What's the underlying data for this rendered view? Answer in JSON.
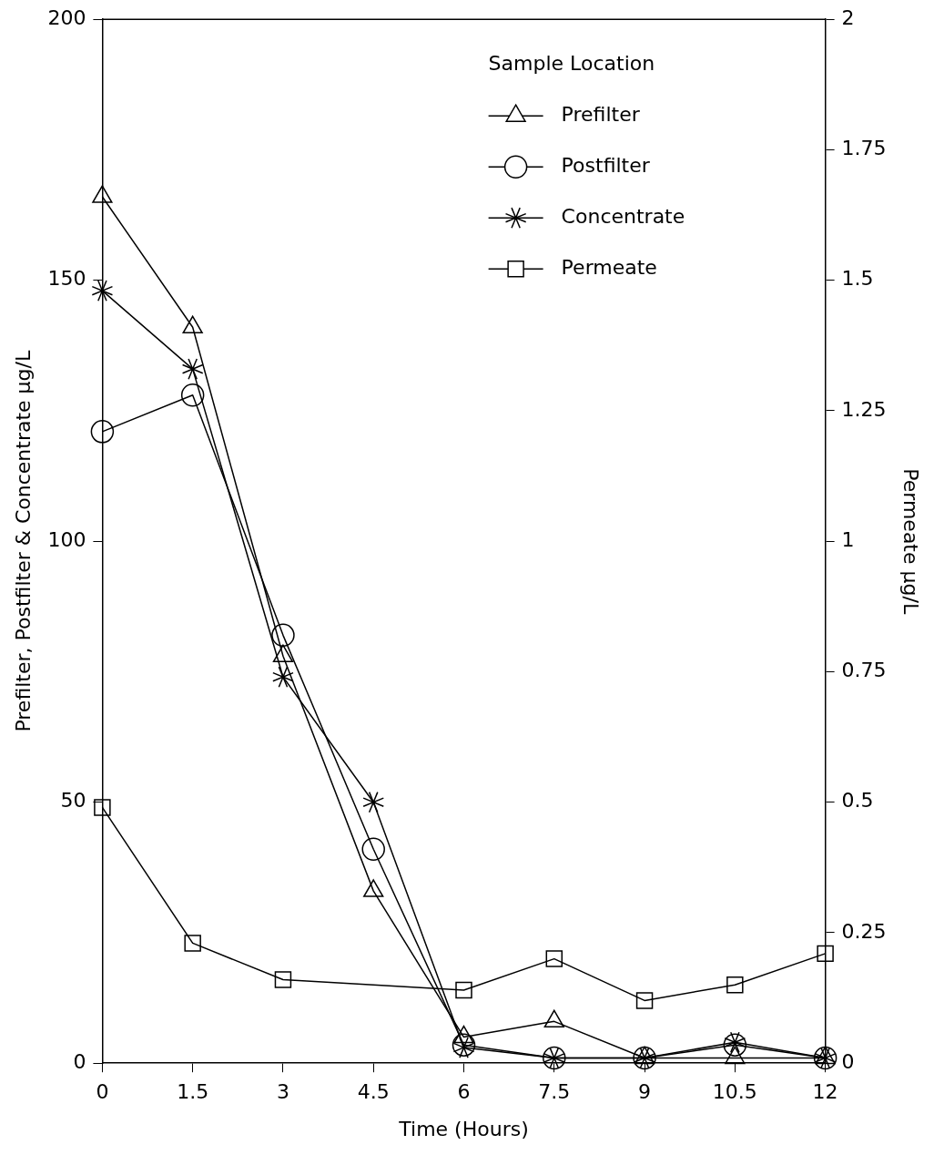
{
  "chart_data": {
    "type": "line",
    "xlabel": "Time (Hours)",
    "ylabel": "Prefilter, Postfilter & Concentrate µg/L",
    "y2label": "Permeate µg/L",
    "legend_title": "Sample Location",
    "legend": "top right",
    "grid": false,
    "line_style": "solid",
    "x": [
      0,
      1.5,
      3,
      4.5,
      6,
      7.5,
      9,
      10.5,
      12
    ],
    "xlim": [
      0,
      12
    ],
    "xticks": [
      0,
      1.5,
      3,
      4.5,
      6,
      7.5,
      9,
      10.5,
      12
    ],
    "ylim": [
      0,
      200
    ],
    "yticks": [
      0,
      50,
      100,
      150,
      200
    ],
    "y2lim": [
      0,
      2
    ],
    "y2ticks": [
      0,
      0.25,
      0.5,
      0.75,
      1,
      1.25,
      1.5,
      1.75,
      2
    ],
    "series": [
      {
        "name": "Prefilter",
        "color": "#000000",
        "marker": "triangle",
        "values": [
          166,
          141,
          78,
          33,
          5,
          8,
          1,
          1,
          1
        ]
      },
      {
        "name": "Postfilter",
        "color": "#000000",
        "marker": "circle",
        "values": [
          121,
          128,
          82,
          41,
          3.5,
          1,
          1,
          3.5,
          1
        ]
      },
      {
        "name": "Concentrate",
        "color": "#000000",
        "marker": "cross",
        "values": [
          148,
          133,
          74,
          50,
          3,
          1,
          1,
          4,
          1
        ]
      },
      {
        "name": "Permeate",
        "color": "#000000",
        "marker": "square",
        "axis": "y2",
        "x": [
          0,
          1.5,
          3,
          6,
          7.5,
          9,
          10.5,
          12
        ],
        "values": [
          0.49,
          0.23,
          0.16,
          0.14,
          0.2,
          0.12,
          0.15,
          0.21
        ]
      }
    ]
  }
}
